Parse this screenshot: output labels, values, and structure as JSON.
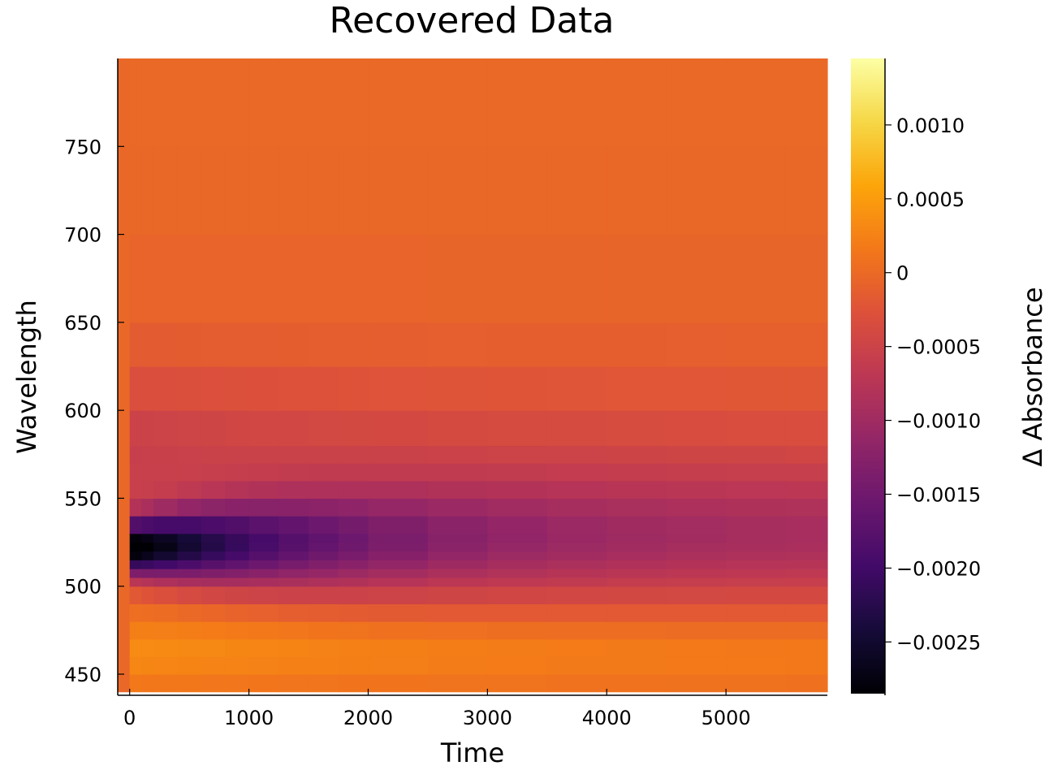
{
  "chart_data": {
    "type": "heatmap",
    "title": "Recovered Data",
    "xlabel": "Time",
    "ylabel": "Wavelength",
    "colorbar_label": "Δ Absorbance",
    "colormap": "inferno",
    "grid": false,
    "legend": "colorbar-right",
    "xlim": [
      -100,
      5850
    ],
    "ylim": [
      438,
      800
    ],
    "clim": [
      -0.00285,
      0.00145
    ],
    "x_ticks": [
      0,
      1000,
      2000,
      3000,
      4000,
      5000
    ],
    "x_tick_labels": [
      "0",
      "1000",
      "2000",
      "3000",
      "4000",
      "5000"
    ],
    "y_ticks": [
      450,
      500,
      550,
      600,
      650,
      700,
      750
    ],
    "y_tick_labels": [
      "450",
      "500",
      "550",
      "600",
      "650",
      "700",
      "750"
    ],
    "colorbar_ticks": [
      0.001,
      0.0005,
      0,
      -0.0005,
      -0.001,
      -0.0015,
      -0.002,
      -0.0025
    ],
    "colorbar_tick_labels": [
      "0.0010",
      "0.0005",
      "0",
      "−0.0005",
      "−0.0010",
      "−0.0015",
      "−0.0020",
      "−0.0025"
    ],
    "time_points": [
      -100,
      0,
      100,
      200,
      400,
      600,
      800,
      1000,
      1250,
      1500,
      1750,
      2000,
      2500,
      3000,
      3500,
      4000,
      4500,
      5000,
      5500,
      5850
    ],
    "wavelength_points": [
      440,
      450,
      460,
      470,
      480,
      490,
      500,
      505,
      510,
      515,
      520,
      525,
      530,
      540,
      550,
      560,
      570,
      580,
      600,
      625,
      650,
      700,
      750,
      800
    ],
    "approx_extremes": {
      "bleach_minimum": {
        "time": 50,
        "wavelength": 522,
        "value": -0.0028
      },
      "induced_absorption_maximum": {
        "time": 100,
        "wavelength": 465,
        "value": 0.0004
      }
    }
  }
}
